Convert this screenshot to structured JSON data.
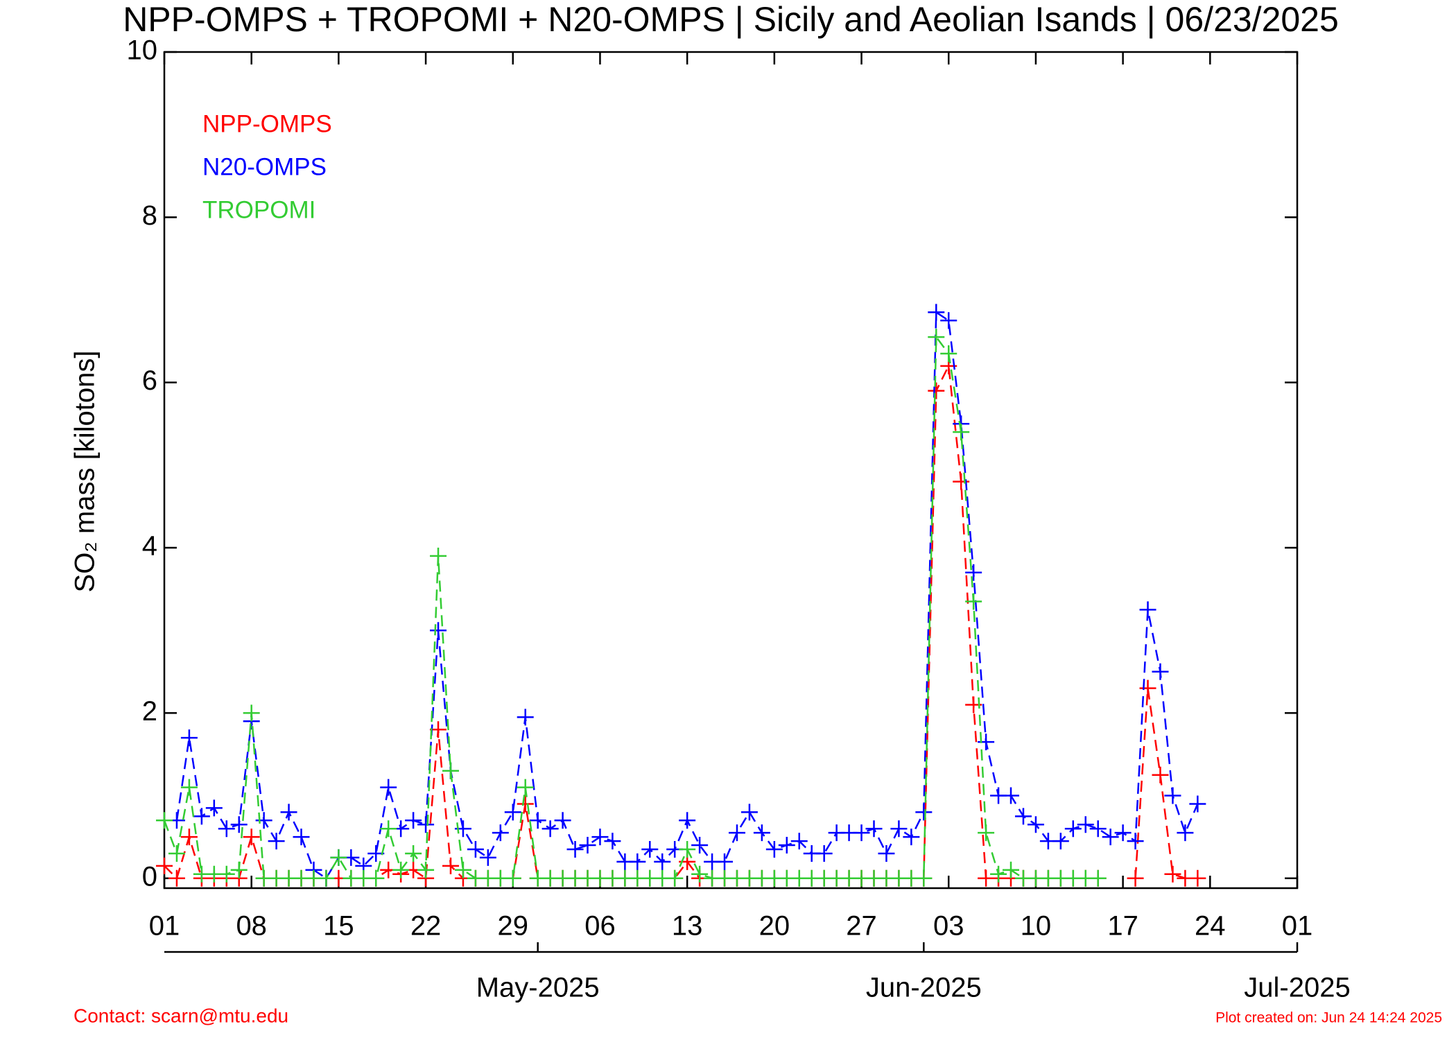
{
  "chart_data": {
    "type": "line",
    "title": "NPP-OMPS + TROPOMI + N20-OMPS | Sicily and Aeolian Isands | 06/23/2025",
    "y_label": "SO₂ mass [kilotons]",
    "contact": "Contact: scarn@mtu.edu",
    "footnote": "Plot created on: Jun 24 14:24 2025",
    "x": [
      "2025-04-01",
      "2025-04-02",
      "2025-04-03",
      "2025-04-04",
      "2025-04-05",
      "2025-04-06",
      "2025-04-07",
      "2025-04-08",
      "2025-04-09",
      "2025-04-10",
      "2025-04-11",
      "2025-04-12",
      "2025-04-13",
      "2025-04-14",
      "2025-04-15",
      "2025-04-16",
      "2025-04-17",
      "2025-04-18",
      "2025-04-19",
      "2025-04-20",
      "2025-04-21",
      "2025-04-22",
      "2025-04-23",
      "2025-04-24",
      "2025-04-25",
      "2025-04-26",
      "2025-04-27",
      "2025-04-28",
      "2025-04-29",
      "2025-04-30",
      "2025-05-01",
      "2025-05-02",
      "2025-05-03",
      "2025-05-04",
      "2025-05-05",
      "2025-05-06",
      "2025-05-07",
      "2025-05-08",
      "2025-05-09",
      "2025-05-10",
      "2025-05-11",
      "2025-05-12",
      "2025-05-13",
      "2025-05-14",
      "2025-05-15",
      "2025-05-16",
      "2025-05-17",
      "2025-05-18",
      "2025-05-19",
      "2025-05-20",
      "2025-05-21",
      "2025-05-22",
      "2025-05-23",
      "2025-05-24",
      "2025-05-25",
      "2025-05-26",
      "2025-05-27",
      "2025-05-28",
      "2025-05-29",
      "2025-05-30",
      "2025-05-31",
      "2025-06-01",
      "2025-06-02",
      "2025-06-03",
      "2025-06-04",
      "2025-06-05",
      "2025-06-06",
      "2025-06-07",
      "2025-06-08",
      "2025-06-09",
      "2025-06-10",
      "2025-06-11",
      "2025-06-12",
      "2025-06-13",
      "2025-06-14",
      "2025-06-15",
      "2025-06-16",
      "2025-06-17",
      "2025-06-18",
      "2025-06-19",
      "2025-06-20",
      "2025-06-21",
      "2025-06-22",
      "2025-06-23"
    ],
    "series": [
      {
        "name": "NPP-OMPS",
        "color": "#ff0000",
        "values": [
          0.15,
          0,
          0.5,
          0,
          0,
          0,
          0,
          0.5,
          0,
          0,
          0,
          0,
          0,
          0,
          0,
          0,
          0,
          0,
          0.1,
          0.05,
          0.1,
          0,
          1.8,
          0.15,
          0,
          0,
          0,
          0,
          0,
          0.9,
          0,
          0,
          0,
          0,
          0,
          0,
          0,
          0,
          0,
          0,
          0,
          0,
          0.2,
          0,
          0,
          0,
          0,
          0,
          0,
          0,
          0,
          0,
          0,
          0,
          0,
          0,
          0,
          0,
          0,
          0,
          0,
          0,
          5.9,
          6.2,
          4.8,
          2.1,
          0,
          0,
          0,
          0,
          0,
          0,
          0,
          0,
          0,
          0,
          null,
          null,
          0,
          2.3,
          1.25,
          0.05,
          0,
          0
        ]
      },
      {
        "name": "N20-OMPS",
        "color": "#0000ff",
        "values": [
          null,
          0.7,
          1.7,
          0.75,
          0.85,
          0.6,
          0.65,
          1.9,
          0.7,
          0.45,
          0.8,
          0.5,
          0.1,
          0,
          0.25,
          0.25,
          0.15,
          0.3,
          1.1,
          0.6,
          0.7,
          0.65,
          3.0,
          1.3,
          0.6,
          0.35,
          0.25,
          0.55,
          0.8,
          1.95,
          0.7,
          0.6,
          0.7,
          0.35,
          0.4,
          0.5,
          0.45,
          0.2,
          0.2,
          0.35,
          0.2,
          0.35,
          0.7,
          0.4,
          0.2,
          0.2,
          0.55,
          0.8,
          0.55,
          0.35,
          0.4,
          0.45,
          0.3,
          0.3,
          0.55,
          0.55,
          0.55,
          0.6,
          0.3,
          0.6,
          0.5,
          0.8,
          6.85,
          6.75,
          5.5,
          3.7,
          1.65,
          1.0,
          1.0,
          0.75,
          0.65,
          0.45,
          0.45,
          0.6,
          0.65,
          0.6,
          0.5,
          0.55,
          0.45,
          3.25,
          2.5,
          1.0,
          0.55,
          0.9
        ]
      },
      {
        "name": "TROPOMI",
        "color": "#33cc33",
        "values": [
          0.7,
          0.3,
          1.1,
          0.05,
          0.05,
          0.05,
          0.1,
          2.0,
          0,
          0,
          0,
          0,
          0,
          0,
          0.25,
          0,
          0,
          0,
          0.6,
          0.1,
          0.3,
          0.1,
          3.9,
          1.3,
          0.1,
          0,
          0,
          0,
          0,
          1.1,
          0,
          0,
          0,
          0,
          0,
          0,
          0,
          0,
          0,
          0,
          0,
          0,
          0.35,
          0.05,
          0,
          0,
          0,
          0,
          0,
          0,
          0,
          0,
          0,
          0,
          0,
          0,
          0,
          0,
          0,
          0,
          0,
          0,
          6.55,
          6.35,
          5.4,
          3.35,
          0.55,
          0.05,
          0.1,
          0,
          0,
          0,
          0,
          0,
          0,
          0,
          null,
          null,
          null,
          null,
          null,
          null,
          null,
          null
        ]
      }
    ],
    "xlim": [
      "2025-04-01",
      "2025-07-01"
    ],
    "xticks": [
      {
        "value": "2025-04-01",
        "label": "01"
      },
      {
        "value": "2025-04-08",
        "label": "08"
      },
      {
        "value": "2025-04-15",
        "label": "15"
      },
      {
        "value": "2025-04-22",
        "label": "22"
      },
      {
        "value": "2025-04-29",
        "label": "29"
      },
      {
        "value": "2025-05-06",
        "label": "06"
      },
      {
        "value": "2025-05-13",
        "label": "13"
      },
      {
        "value": "2025-05-20",
        "label": "20"
      },
      {
        "value": "2025-05-27",
        "label": "27"
      },
      {
        "value": "2025-06-03",
        "label": "03"
      },
      {
        "value": "2025-06-10",
        "label": "10"
      },
      {
        "value": "2025-06-17",
        "label": "17"
      },
      {
        "value": "2025-06-24",
        "label": "24"
      },
      {
        "value": "2025-07-01",
        "label": "01"
      }
    ],
    "month_ticks": [
      {
        "value": "2025-05-01",
        "label": "May-2025"
      },
      {
        "value": "2025-06-01",
        "label": "Jun-2025"
      },
      {
        "value": "2025-07-01",
        "label": "Jul-2025"
      }
    ],
    "ylim": [
      -0.12,
      10
    ],
    "yticks": [
      0,
      2,
      4,
      6,
      8,
      10
    ],
    "legend": "upper left"
  }
}
